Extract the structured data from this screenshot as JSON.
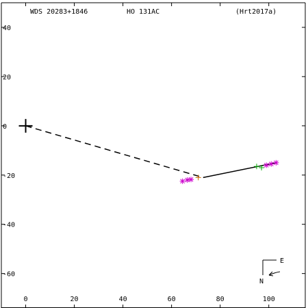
{
  "header": {
    "wds_id": "WDS 20283+1846",
    "discoverer": "HO  131AC",
    "reference": "(Hrt2017a)"
  },
  "compass": {
    "east_label": "E",
    "north_label": "N"
  },
  "colors": {
    "axes": "#000000",
    "primary_marker": "#000000",
    "orbit_line": "#000000",
    "points_magenta": "#cc00cc",
    "points_green": "#00aa00",
    "points_orange": "#cc6600"
  },
  "chart_data": {
    "type": "scatter",
    "title": "",
    "xlabel": "",
    "ylabel": "",
    "xlim": [
      -10,
      115
    ],
    "ylim": [
      -74,
      50
    ],
    "x_ticks": [
      0,
      20,
      40,
      60,
      80,
      100
    ],
    "y_ticks": [
      -60,
      -40,
      -20,
      0,
      20,
      40
    ],
    "grid": false,
    "primary_star": {
      "x": 0,
      "y": 0,
      "marker": "plus"
    },
    "dashed_connector": [
      [
        0,
        0
      ],
      [
        73,
        -21
      ]
    ],
    "solid_path": [
      [
        73,
        -21
      ],
      [
        103,
        -15
      ]
    ],
    "series": [
      {
        "marker": "asterisk",
        "color": "magenta",
        "points": [
          [
            64.5,
            -22.5
          ],
          [
            66.5,
            -22
          ],
          [
            68,
            -21.8
          ],
          [
            99,
            -16
          ],
          [
            101,
            -15.5
          ],
          [
            103,
            -15
          ]
        ]
      },
      {
        "marker": "plus",
        "color": "green",
        "points": [
          [
            95,
            -16.5
          ],
          [
            97,
            -17
          ]
        ]
      },
      {
        "marker": "plus",
        "color": "orange",
        "points": [
          [
            71,
            -21
          ]
        ]
      }
    ]
  }
}
